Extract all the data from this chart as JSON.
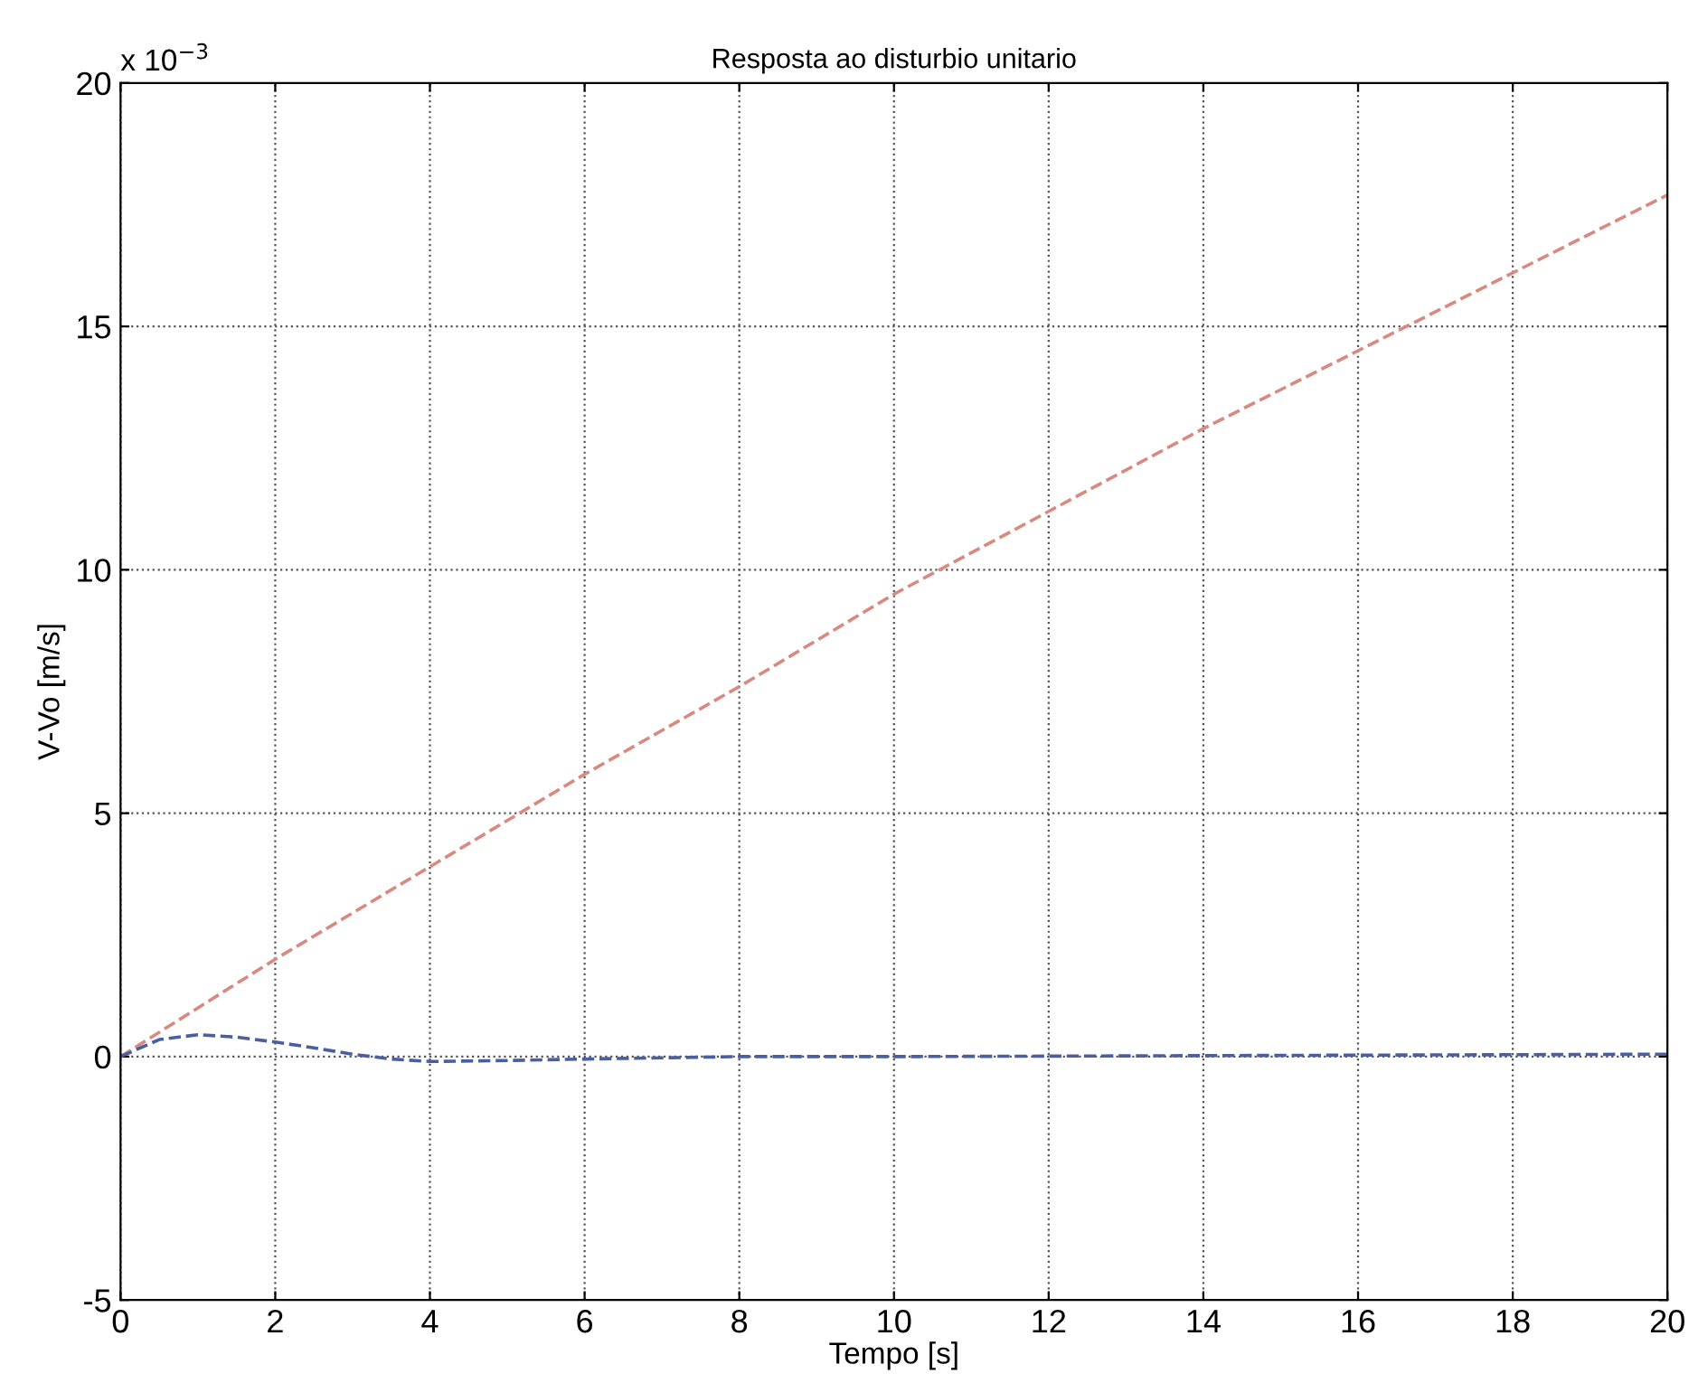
{
  "chart_data": {
    "type": "line",
    "title": "Resposta ao disturbio unitario",
    "xlabel": "Tempo [s]",
    "ylabel": "V-Vo [m/s]",
    "annotations": [
      "x 10$^{−3}$"
    ],
    "xlim": [
      0,
      20
    ],
    "xticks": [
      0,
      2,
      4,
      6,
      8,
      10,
      12,
      14,
      16,
      18,
      20
    ],
    "ylim": [
      -5,
      20
    ],
    "yticks": [
      -5,
      0,
      5,
      10,
      15,
      20
    ],
    "grid": true,
    "marker": "none",
    "line_style": "dashed",
    "series": [
      {
        "color": "#d98a80",
        "x": [
          0,
          2,
          4,
          6,
          8,
          10,
          12,
          14,
          16,
          18,
          20
        ],
        "values": [
          0,
          2.0,
          3.9,
          5.8,
          7.6,
          9.5,
          11.2,
          12.9,
          14.5,
          16.1,
          17.7
        ]
      },
      {
        "color": "#4a5fa0",
        "x": [
          0,
          0.5,
          1,
          1.5,
          2,
          2.5,
          3,
          3.5,
          4,
          5,
          6,
          8,
          10,
          14,
          20
        ],
        "values": [
          0,
          0.35,
          0.45,
          0.4,
          0.3,
          0.18,
          0.05,
          -0.05,
          -0.1,
          -0.08,
          -0.05,
          0,
          0,
          0.02,
          0.05
        ]
      }
    ]
  }
}
